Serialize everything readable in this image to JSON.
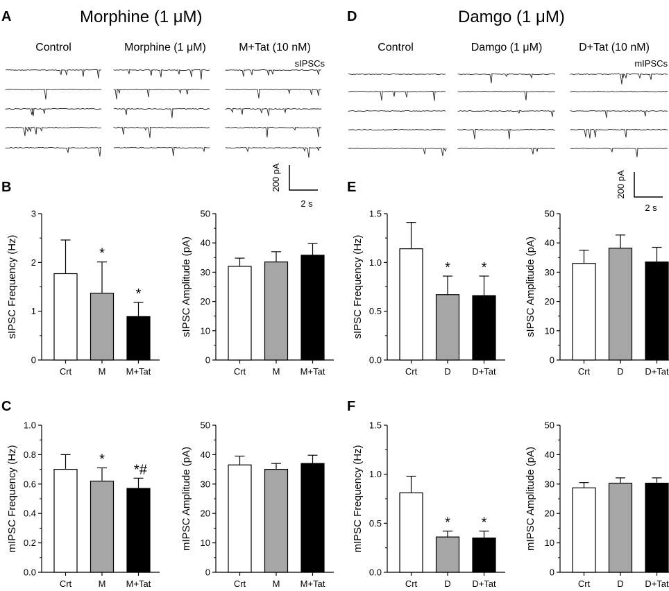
{
  "panel_letters": {
    "A": "A",
    "B": "B",
    "C": "C",
    "D": "D",
    "E": "E",
    "F": "F"
  },
  "titles": {
    "left": "Morphine (1 μM)",
    "right": "Damgo (1 μM)"
  },
  "traces": {
    "left_columns": [
      "Control",
      "Morphine (1 μM)",
      "M+Tat (10 nM)"
    ],
    "left_tag": "sIPSCs",
    "right_columns": [
      "Control",
      "Damgo (1 μM)",
      "D+Tat (10 nM)"
    ],
    "right_tag": "mIPSCs",
    "scale_current": "200 pA",
    "scale_time": "2 s"
  },
  "chart_data": [
    {
      "id": "B1",
      "type": "bar",
      "ylabel": "sIPSC Frequency (Hz)",
      "categories": [
        "Crt",
        "M",
        "M+Tat"
      ],
      "values": [
        1.77,
        1.37,
        0.89
      ],
      "errors": [
        0.69,
        0.64,
        0.29
      ],
      "ylim": [
        0,
        3
      ],
      "yticks": [
        0,
        1,
        2,
        3
      ],
      "ytick_labels": [
        "0",
        "1",
        "2",
        "3"
      ],
      "annotations": [
        "",
        "*",
        "*"
      ],
      "colors": [
        "#ffffff",
        "#a6a6a6",
        "#000000"
      ]
    },
    {
      "id": "B2",
      "type": "bar",
      "ylabel": "sIPSC Amplitude (pA)",
      "categories": [
        "Crt",
        "M",
        "M+Tat"
      ],
      "values": [
        32.0,
        33.5,
        35.8
      ],
      "errors": [
        2.8,
        3.5,
        4.0
      ],
      "ylim": [
        0,
        50
      ],
      "yticks": [
        0,
        10,
        20,
        30,
        40,
        50
      ],
      "ytick_labels": [
        "0",
        "10",
        "20",
        "30",
        "40",
        "50"
      ],
      "annotations": [
        "",
        "",
        ""
      ],
      "colors": [
        "#ffffff",
        "#a6a6a6",
        "#000000"
      ]
    },
    {
      "id": "C1",
      "type": "bar",
      "ylabel": "mIPSC Frequency (Hz)",
      "categories": [
        "Crt",
        "M",
        "M+Tat"
      ],
      "values": [
        0.7,
        0.62,
        0.57
      ],
      "errors": [
        0.1,
        0.09,
        0.07
      ],
      "ylim": [
        0,
        1.0
      ],
      "yticks": [
        0,
        0.2,
        0.4,
        0.6,
        0.8,
        1.0
      ],
      "ytick_labels": [
        "0.0",
        "0.2",
        "0.4",
        "0.6",
        "0.8",
        "1.0"
      ],
      "annotations": [
        "",
        "*",
        "*#"
      ],
      "colors": [
        "#ffffff",
        "#a6a6a6",
        "#000000"
      ]
    },
    {
      "id": "C2",
      "type": "bar",
      "ylabel": "mIPSC Amplitude (pA)",
      "categories": [
        "Crt",
        "M",
        "M+Tat"
      ],
      "values": [
        36.5,
        35.0,
        37.0
      ],
      "errors": [
        3.0,
        2.0,
        2.8
      ],
      "ylim": [
        0,
        50
      ],
      "yticks": [
        0,
        10,
        20,
        30,
        40,
        50
      ],
      "ytick_labels": [
        "0",
        "10",
        "20",
        "30",
        "40",
        "50"
      ],
      "annotations": [
        "",
        "",
        ""
      ],
      "colors": [
        "#ffffff",
        "#a6a6a6",
        "#000000"
      ]
    },
    {
      "id": "E1",
      "type": "bar",
      "ylabel": "sIPSC Frequency (Hz)",
      "categories": [
        "Crt",
        "D",
        "D+Tat"
      ],
      "values": [
        1.14,
        0.67,
        0.66
      ],
      "errors": [
        0.27,
        0.19,
        0.2
      ],
      "ylim": [
        0,
        1.5
      ],
      "yticks": [
        0,
        0.5,
        1.0,
        1.5
      ],
      "ytick_labels": [
        "0.0",
        "0.5",
        "1.0",
        "1.5"
      ],
      "annotations": [
        "",
        "*",
        "*"
      ],
      "colors": [
        "#ffffff",
        "#a6a6a6",
        "#000000"
      ]
    },
    {
      "id": "E2",
      "type": "bar",
      "ylabel": "sIPSC Amplitude (pA)",
      "categories": [
        "Crt",
        "D",
        "D+Tat"
      ],
      "values": [
        33.0,
        38.2,
        33.5
      ],
      "errors": [
        4.5,
        4.5,
        5.0
      ],
      "ylim": [
        0,
        50
      ],
      "yticks": [
        0,
        10,
        20,
        30,
        40,
        50
      ],
      "ytick_labels": [
        "0",
        "10",
        "20",
        "30",
        "40",
        "50"
      ],
      "annotations": [
        "",
        "",
        ""
      ],
      "colors": [
        "#ffffff",
        "#a6a6a6",
        "#000000"
      ]
    },
    {
      "id": "F1",
      "type": "bar",
      "ylabel": "mIPSC Frequency (Hz)",
      "categories": [
        "Crt",
        "D",
        "D+Tat"
      ],
      "values": [
        0.81,
        0.36,
        0.35
      ],
      "errors": [
        0.17,
        0.06,
        0.07
      ],
      "ylim": [
        0,
        1.5
      ],
      "yticks": [
        0,
        0.5,
        1.0,
        1.5
      ],
      "ytick_labels": [
        "0.0",
        "0.5",
        "1.0",
        "1.5"
      ],
      "annotations": [
        "",
        "*",
        "*"
      ],
      "colors": [
        "#ffffff",
        "#a6a6a6",
        "#000000"
      ]
    },
    {
      "id": "F2",
      "type": "bar",
      "ylabel": "mIPSC Amplitude (pA)",
      "categories": [
        "Crt",
        "D",
        "D+Tat"
      ],
      "values": [
        28.7,
        30.3,
        30.3
      ],
      "errors": [
        1.8,
        1.8,
        1.8
      ],
      "ylim": [
        0,
        50
      ],
      "yticks": [
        0,
        10,
        20,
        30,
        40,
        50
      ],
      "ytick_labels": [
        "0",
        "10",
        "20",
        "30",
        "40",
        "50"
      ],
      "annotations": [
        "",
        "",
        ""
      ],
      "colors": [
        "#ffffff",
        "#a6a6a6",
        "#000000"
      ]
    }
  ]
}
